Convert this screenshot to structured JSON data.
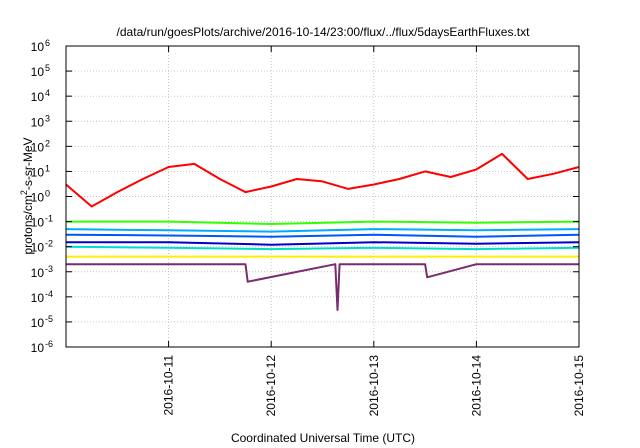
{
  "chart_data": {
    "type": "line",
    "title": "/data/run/goesPlots/archive/2016-10-14/23:00/flux/../flux/5daysEarthFluxes.txt",
    "xlabel": "Coordinated Universal Time (UTC)",
    "ylabel": "protons/cm²-s-sr-MeV",
    "yscale": "log",
    "xlim": [
      "2016-10-10",
      "2016-10-15"
    ],
    "ylim": [
      1e-06,
      1000000.0
    ],
    "x_ticks": [
      "2016-10-11",
      "2016-10-12",
      "2016-10-13",
      "2016-10-14",
      "2016-10-15"
    ],
    "y_ticks": [
      {
        "base": "10",
        "exp": "-6"
      },
      {
        "base": "10",
        "exp": "-5"
      },
      {
        "base": "10",
        "exp": "-4"
      },
      {
        "base": "10",
        "exp": "-3"
      },
      {
        "base": "10",
        "exp": "-2"
      },
      {
        "base": "10",
        "exp": "-1"
      },
      {
        "base": "10",
        "exp": "0"
      },
      {
        "base": "10",
        "exp": "1"
      },
      {
        "base": "10",
        "exp": "2"
      },
      {
        "base": "10",
        "exp": "3"
      },
      {
        "base": "10",
        "exp": "4"
      },
      {
        "base": "10",
        "exp": "5"
      },
      {
        "base": "10",
        "exp": "6"
      }
    ],
    "grid": true,
    "series": [
      {
        "color": "#ff0000",
        "x": [
          "2016-10-10",
          "2016-10-10 06:00",
          "2016-10-10 12:00",
          "2016-10-10 18:00",
          "2016-10-11 00:00",
          "2016-10-11 06:00",
          "2016-10-11 12:00",
          "2016-10-11 18:00",
          "2016-10-12 00:00",
          "2016-10-12 06:00",
          "2016-10-12 12:00",
          "2016-10-12 18:00",
          "2016-10-13 00:00",
          "2016-10-13 06:00",
          "2016-10-13 12:00",
          "2016-10-13 18:00",
          "2016-10-14 00:00",
          "2016-10-14 06:00",
          "2016-10-14 12:00",
          "2016-10-14 18:00",
          "2016-10-15 00:00"
        ],
        "y": [
          3,
          0.4,
          1.5,
          5,
          15,
          20,
          5,
          1.5,
          2.5,
          5,
          4,
          2,
          3,
          5,
          10,
          6,
          12,
          50,
          5,
          8,
          15
        ]
      },
      {
        "color": "#33ff00",
        "x": [
          "2016-10-10",
          "2016-10-11",
          "2016-10-12",
          "2016-10-13",
          "2016-10-14",
          "2016-10-15"
        ],
        "y": [
          0.1,
          0.1,
          0.08,
          0.1,
          0.09,
          0.1
        ]
      },
      {
        "color": "#00aaff",
        "x": [
          "2016-10-10",
          "2016-10-11",
          "2016-10-12",
          "2016-10-13",
          "2016-10-14",
          "2016-10-15"
        ],
        "y": [
          0.05,
          0.045,
          0.04,
          0.05,
          0.045,
          0.05
        ]
      },
      {
        "color": "#0055ff",
        "x": [
          "2016-10-10",
          "2016-10-11",
          "2016-10-12",
          "2016-10-13",
          "2016-10-14",
          "2016-10-15"
        ],
        "y": [
          0.03,
          0.028,
          0.025,
          0.03,
          0.025,
          0.03
        ]
      },
      {
        "color": "#0000cc",
        "x": [
          "2016-10-10",
          "2016-10-11",
          "2016-10-12",
          "2016-10-13",
          "2016-10-14",
          "2016-10-15"
        ],
        "y": [
          0.015,
          0.015,
          0.012,
          0.015,
          0.013,
          0.015
        ]
      },
      {
        "color": "#00ddcc",
        "x": [
          "2016-10-10",
          "2016-10-11",
          "2016-10-12",
          "2016-10-13",
          "2016-10-14",
          "2016-10-15"
        ],
        "y": [
          0.01,
          0.009,
          0.008,
          0.009,
          0.008,
          0.009
        ]
      },
      {
        "color": "#ffee00",
        "x": [
          "2016-10-10",
          "2016-10-11",
          "2016-10-12",
          "2016-10-13",
          "2016-10-14",
          "2016-10-15"
        ],
        "y": [
          0.004,
          0.004,
          0.004,
          0.004,
          0.004,
          0.004
        ]
      },
      {
        "color": "#7b2a70",
        "x": [
          "2016-10-10",
          "2016-10-10 18:00",
          "2016-10-11 18:00",
          "2016-10-11 18:30",
          "2016-10-12 15:00",
          "2016-10-12 15:30",
          "2016-10-12 16:00",
          "2016-10-13 12:00",
          "2016-10-13 12:30",
          "2016-10-14",
          "2016-10-15"
        ],
        "y": [
          0.002,
          0.002,
          0.002,
          0.0004,
          0.002,
          3e-05,
          0.002,
          0.002,
          0.0006,
          0.002,
          0.002
        ]
      }
    ]
  }
}
